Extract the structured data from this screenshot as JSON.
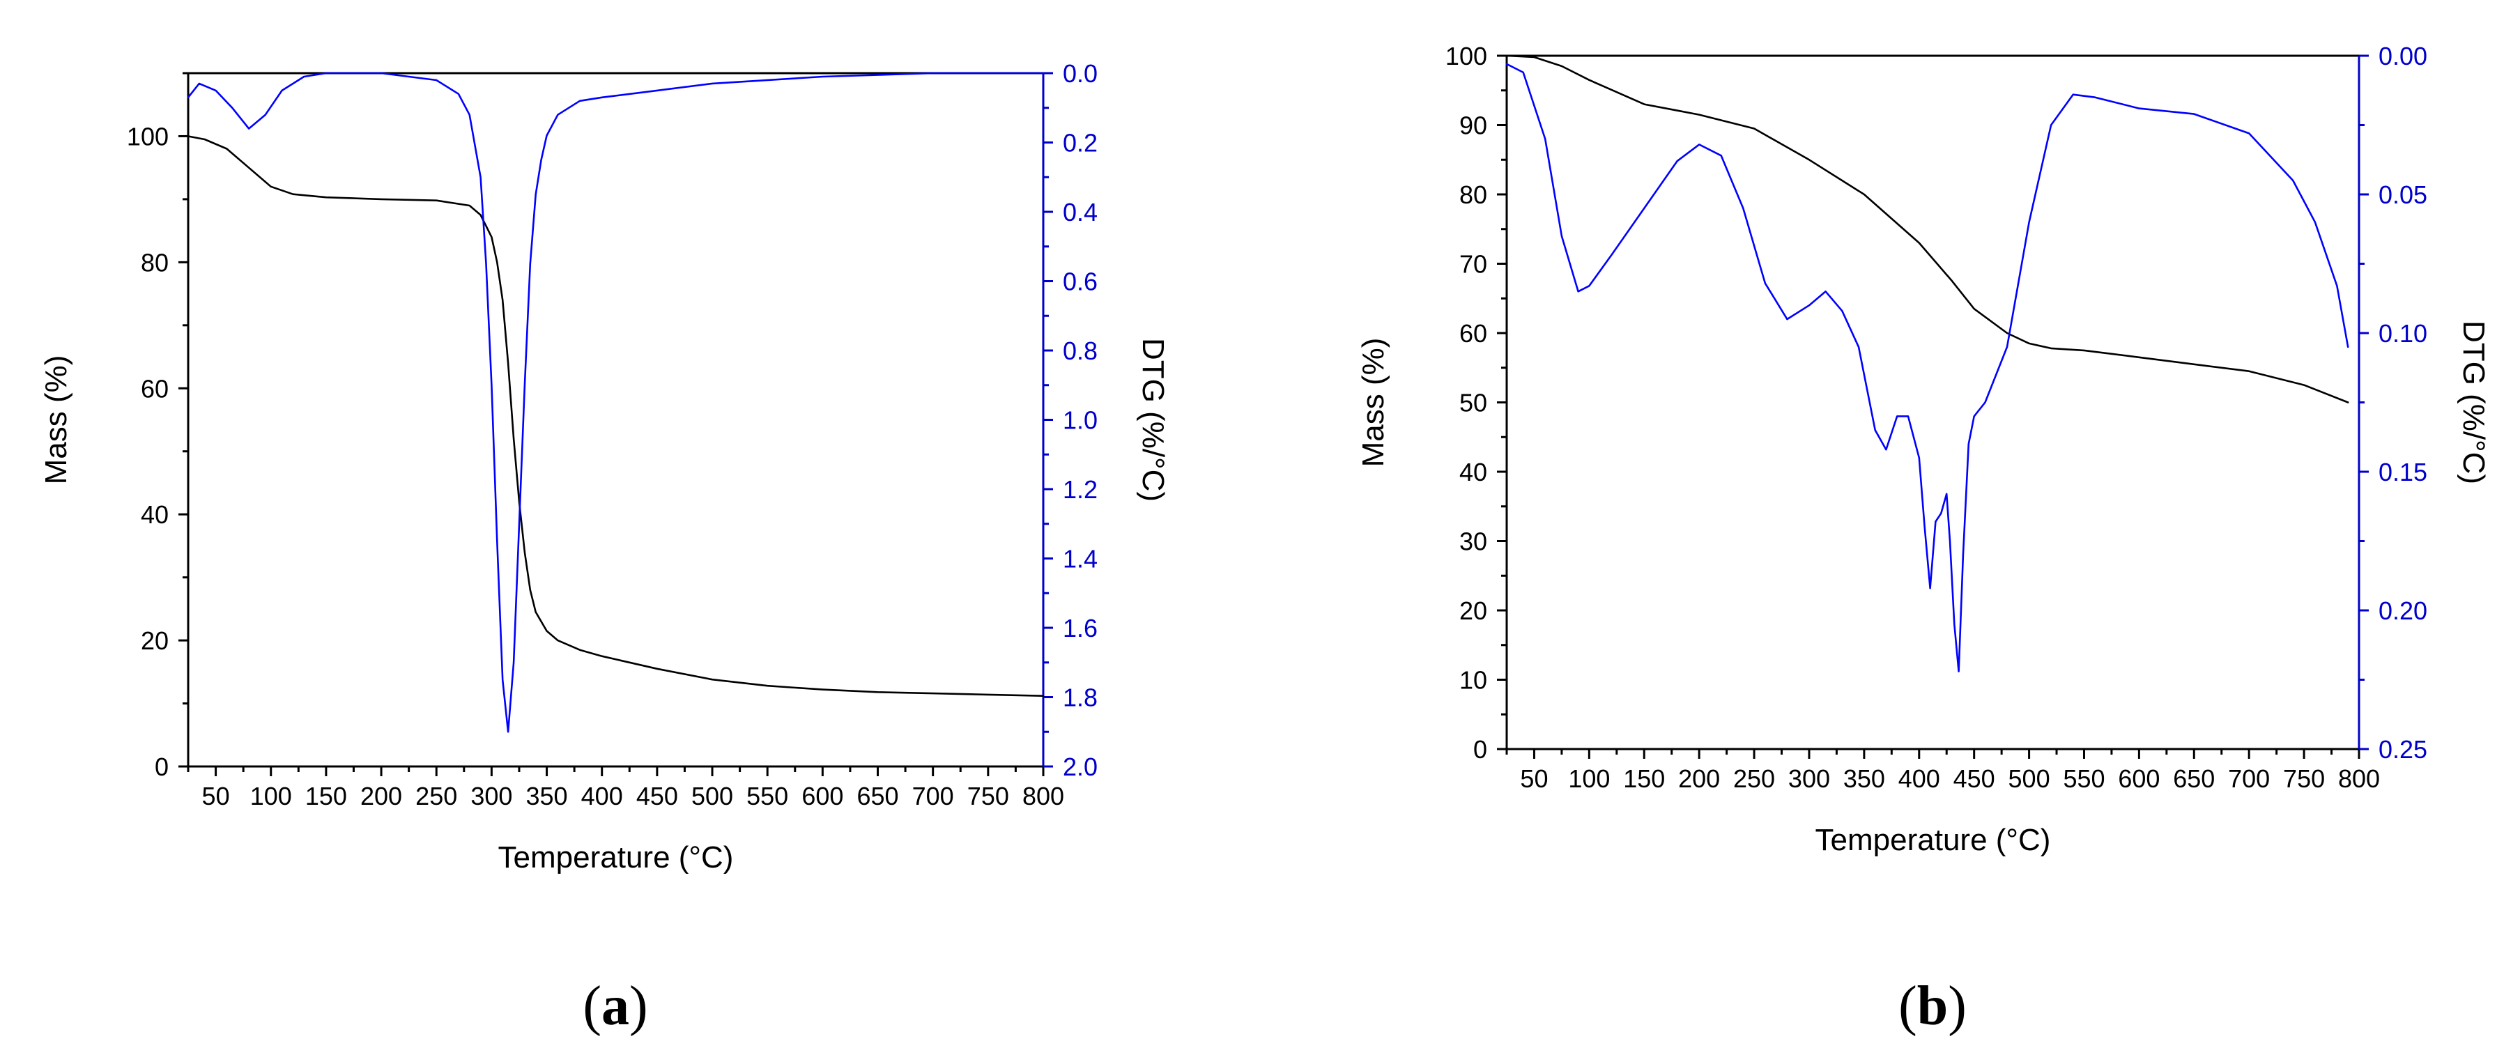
{
  "figure": {
    "colors": {
      "mass": "#000000",
      "dtg": "#0000ff",
      "axis_left": "#000000",
      "axis_right": "#0000cc"
    }
  },
  "chart_data": [
    {
      "type": "line",
      "panel_label": "a",
      "xlabel": "Temperature (°C)",
      "ylabel": "Mass (%)",
      "y2label": "DTG (%/°C)",
      "xlim": [
        25,
        800
      ],
      "ylim": [
        0,
        110
      ],
      "y2lim": [
        0,
        2.0
      ],
      "y2_inverted": true,
      "x_ticks": [
        50,
        100,
        150,
        200,
        250,
        300,
        350,
        400,
        450,
        500,
        550,
        600,
        650,
        700,
        750,
        800
      ],
      "x_tick_labels": [
        "50",
        "100",
        "150",
        "200",
        "250",
        "300",
        "350",
        "400",
        "450",
        "500",
        "550",
        "600",
        "650",
        "700",
        "750",
        "800"
      ],
      "y_ticks": [
        0,
        20,
        40,
        60,
        80,
        100
      ],
      "y_tick_labels": [
        "0",
        "20",
        "40",
        "60",
        "80",
        "100"
      ],
      "y2_ticks": [
        0,
        0.2,
        0.4,
        0.6,
        0.8,
        1.0,
        1.2,
        1.4,
        1.6,
        1.8,
        2.0
      ],
      "y2_tick_labels": [
        "0.0",
        "0.2",
        "0.4",
        "0.6",
        "0.8",
        "1.0",
        "1.2",
        "1.4",
        "1.6",
        "1.8",
        "2.0"
      ],
      "grid": false,
      "series": [
        {
          "axis": "left",
          "x": [
            25,
            40,
            60,
            80,
            100,
            120,
            150,
            200,
            250,
            280,
            290,
            300,
            305,
            310,
            315,
            320,
            325,
            330,
            335,
            340,
            350,
            360,
            380,
            400,
            450,
            500,
            550,
            600,
            650,
            700,
            750,
            800
          ],
          "values": [
            100,
            99.5,
            98,
            95,
            92,
            90.8,
            90.3,
            90,
            89.8,
            89,
            87.5,
            84,
            80,
            74,
            64,
            52,
            42,
            34,
            28,
            24.5,
            21.5,
            20,
            18.5,
            17.5,
            15.5,
            13.8,
            12.8,
            12.2,
            11.8,
            11.6,
            11.4,
            11.2
          ]
        },
        {
          "axis": "right",
          "x": [
            25,
            35,
            50,
            65,
            80,
            95,
            110,
            130,
            150,
            200,
            250,
            270,
            280,
            290,
            295,
            300,
            305,
            310,
            315,
            320,
            325,
            330,
            335,
            340,
            345,
            350,
            360,
            380,
            400,
            450,
            500,
            600,
            700,
            800
          ],
          "values": [
            0.07,
            0.03,
            0.05,
            0.1,
            0.16,
            0.12,
            0.05,
            0.01,
            0.0,
            0.0,
            0.02,
            0.06,
            0.12,
            0.3,
            0.55,
            0.9,
            1.35,
            1.75,
            1.9,
            1.7,
            1.3,
            0.9,
            0.55,
            0.35,
            0.25,
            0.18,
            0.12,
            0.08,
            0.07,
            0.05,
            0.03,
            0.01,
            0.0,
            0.0
          ]
        }
      ]
    },
    {
      "type": "line",
      "panel_label": "b",
      "xlabel": "Temperature (°C)",
      "ylabel": "Mass (%)",
      "y2label": "DTG (%/°C)",
      "xlim": [
        25,
        800
      ],
      "ylim": [
        0,
        100
      ],
      "y2lim": [
        0,
        0.25
      ],
      "y2_inverted": true,
      "x_ticks": [
        50,
        100,
        150,
        200,
        250,
        300,
        350,
        400,
        450,
        500,
        550,
        600,
        650,
        700,
        750,
        800
      ],
      "x_tick_labels": [
        "50",
        "100",
        "150",
        "200",
        "250",
        "300",
        "350",
        "400",
        "450",
        "500",
        "550",
        "600",
        "650",
        "700",
        "750",
        "800"
      ],
      "y_ticks": [
        0,
        10,
        20,
        30,
        40,
        50,
        60,
        70,
        80,
        90,
        100
      ],
      "y_tick_labels": [
        "0",
        "10",
        "20",
        "30",
        "40",
        "50",
        "60",
        "70",
        "80",
        "90",
        "100"
      ],
      "y2_ticks": [
        0,
        0.05,
        0.1,
        0.15,
        0.2,
        0.25
      ],
      "y2_tick_labels": [
        "0.00",
        "0.05",
        "0.10",
        "0.15",
        "0.20",
        "0.25"
      ],
      "grid": false,
      "series": [
        {
          "axis": "left",
          "x": [
            25,
            50,
            75,
            100,
            150,
            200,
            250,
            300,
            350,
            400,
            430,
            450,
            480,
            500,
            520,
            550,
            600,
            650,
            700,
            750,
            790
          ],
          "values": [
            100,
            99.8,
            98.5,
            96.5,
            93,
            91.5,
            89.5,
            85,
            80,
            73,
            67.5,
            63.5,
            60,
            58.5,
            57.8,
            57.5,
            56.5,
            55.5,
            54.5,
            52.5,
            50
          ]
        },
        {
          "axis": "right",
          "x": [
            25,
            40,
            60,
            75,
            90,
            100,
            120,
            150,
            180,
            200,
            220,
            240,
            260,
            280,
            300,
            315,
            330,
            345,
            360,
            370,
            380,
            390,
            400,
            405,
            410,
            415,
            420,
            425,
            428,
            432,
            436,
            440,
            445,
            450,
            460,
            480,
            500,
            520,
            540,
            560,
            600,
            650,
            700,
            740,
            760,
            780,
            790
          ],
          "values": [
            0.003,
            0.006,
            0.03,
            0.065,
            0.085,
            0.083,
            0.072,
            0.055,
            0.038,
            0.032,
            0.036,
            0.055,
            0.082,
            0.095,
            0.09,
            0.085,
            0.092,
            0.105,
            0.135,
            0.142,
            0.13,
            0.13,
            0.145,
            0.17,
            0.192,
            0.168,
            0.165,
            0.158,
            0.175,
            0.205,
            0.222,
            0.18,
            0.14,
            0.13,
            0.125,
            0.105,
            0.06,
            0.025,
            0.014,
            0.015,
            0.019,
            0.021,
            0.028,
            0.045,
            0.06,
            0.083,
            0.105
          ]
        }
      ]
    }
  ]
}
